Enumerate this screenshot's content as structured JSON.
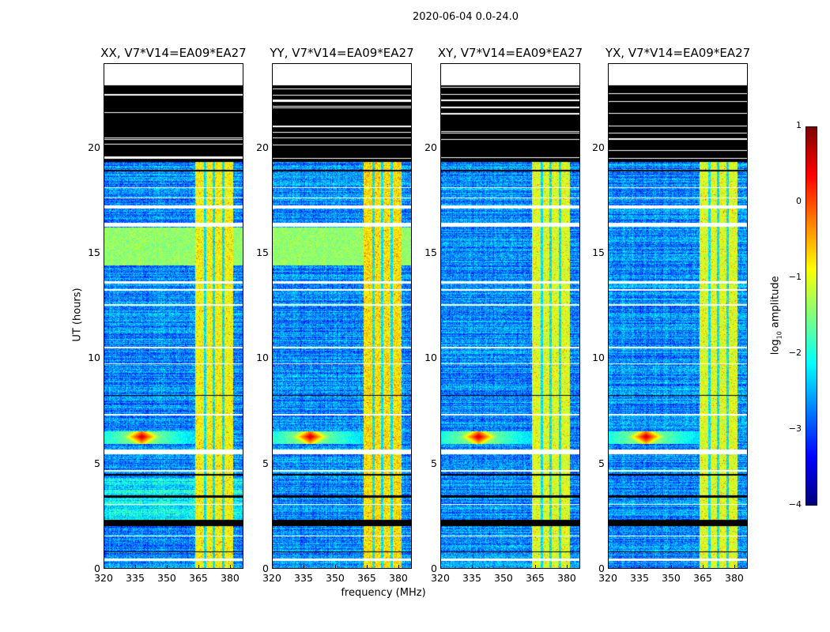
{
  "figure_title": "2020-06-04 0.0-24.0",
  "chart_data": {
    "type": "heatmap",
    "title": "2020-06-04 0.0-24.0",
    "xlabel": "frequency (MHz)",
    "ylabel": "UT (hours)",
    "xlim": [
      320,
      386.4
    ],
    "ylim": [
      0,
      24
    ],
    "xticks": [
      "320",
      "335",
      "350",
      "365",
      "380"
    ],
    "xtick_values": [
      320,
      335,
      350,
      365,
      380
    ],
    "yticks": [
      "0",
      "5",
      "10",
      "15",
      "20"
    ],
    "ytick_values": [
      0,
      5,
      10,
      15,
      20
    ],
    "panels": [
      {
        "title": "XX, V7*V14=EA09*EA27",
        "seed": 11,
        "rfi_strength": 0.0,
        "bright_band": true
      },
      {
        "title": "YY, V7*V14=EA09*EA27",
        "seed": 23,
        "rfi_strength": 0.25,
        "bright_band": true
      },
      {
        "title": "XY, V7*V14=EA09*EA27",
        "seed": 37,
        "rfi_strength": -0.3,
        "bright_band": false
      },
      {
        "title": "YX, V7*V14=EA09*EA27",
        "seed": 51,
        "rfi_strength": -0.3,
        "bright_band": false
      }
    ],
    "colorbar": {
      "label": "log10 amplitude",
      "label_main": "log",
      "label_sub": "10",
      "label_rest": " amplitude",
      "range": [
        -4,
        1
      ],
      "ticks": [
        "1",
        "0",
        "−1",
        "−2",
        "−3",
        "−4"
      ],
      "tick_values": [
        1,
        0,
        -1,
        -2,
        -3,
        -4
      ],
      "colormap": "jet"
    },
    "background_level": -2.7,
    "rfi_band_mhz": [
      363.5,
      382
    ],
    "rfi_gaps_mhz": [
      368.5,
      372.5,
      377
    ],
    "rfi_level": -0.9,
    "bright_band_hours": [
      14.4,
      16.2
    ],
    "bright_band_level": -1.4,
    "strong_rfi_hours": [
      5.9,
      6.5
    ],
    "strong_rfi_peak_mhz": 338,
    "no_data_hours": [
      [
        23.0,
        24.0
      ],
      [
        16.25,
        16.45
      ],
      [
        17.1,
        17.25
      ],
      [
        13.55,
        13.65
      ],
      [
        13.2,
        13.28
      ],
      [
        12.5,
        12.56
      ],
      [
        10.45,
        10.55
      ],
      [
        7.25,
        7.35
      ],
      [
        5.4,
        5.65
      ],
      [
        4.6,
        4.68
      ],
      [
        1.5,
        1.55
      ],
      [
        0.35,
        0.45
      ],
      [
        18.1,
        18.15
      ],
      [
        17.6,
        17.65
      ],
      [
        9.7,
        9.74
      ],
      [
        3.0,
        3.04
      ]
    ],
    "flagged_hours": [
      [
        19.35,
        23.0
      ],
      [
        2.0,
        2.3
      ],
      [
        3.35,
        3.45
      ],
      [
        4.4,
        4.48
      ],
      [
        0.75,
        0.8
      ],
      [
        8.2,
        8.25
      ],
      [
        18.9,
        18.95
      ]
    ]
  }
}
